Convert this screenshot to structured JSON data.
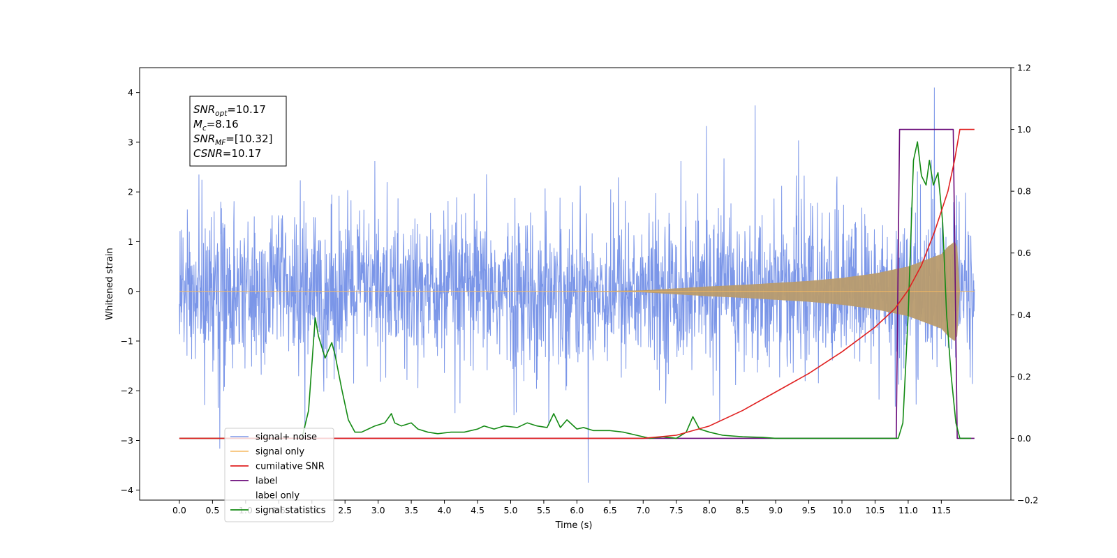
{
  "chart_data": {
    "type": "line",
    "title": "",
    "xlabel": "Time (s)",
    "ylabel": "Whitened strain",
    "xlim": [
      -0.6,
      12.55
    ],
    "ylim": [
      -4.2,
      4.5
    ],
    "y2lim": [
      -0.2,
      1.2
    ],
    "x_ticks": [
      "0.0",
      "0.5",
      "1.0",
      "1.5",
      "2.0",
      "2.5",
      "3.0",
      "3.5",
      "4.0",
      "4.5",
      "5.0",
      "5.5",
      "6.0",
      "6.5",
      "7.0",
      "7.5",
      "8.0",
      "8.5",
      "9.0",
      "9.5",
      "10.0",
      "10.5",
      "11.0",
      "11.5"
    ],
    "y_ticks": [
      "4",
      "3",
      "2",
      "1",
      "0",
      "−1",
      "−2",
      "−3",
      "−4"
    ],
    "y2_ticks": [
      "1.2",
      "1.0",
      "0.8",
      "0.6",
      "0.4",
      "0.2",
      "0.0",
      "−0.2"
    ],
    "grid": false,
    "legend_position": "lower-left",
    "annotation": {
      "lines": [
        {
          "name": "SNR",
          "sub": "opt",
          "value": "=10.17"
        },
        {
          "name": "M",
          "sub": "c",
          "value": "=8.16"
        },
        {
          "name": "SNR",
          "sub": "MF",
          "value": "=[10.32]"
        },
        {
          "name": "CSNR",
          "sub": "",
          "value": "=10.17"
        }
      ]
    },
    "series": [
      {
        "name": "signal+ noise",
        "color": "#7b96e8",
        "axis": "left",
        "x_range": [
          0.0,
          12.0
        ],
        "description_values": {
          "std": 0.75,
          "spike_max": 4.1,
          "spike_min": -3.85
        }
      },
      {
        "name": "signal only",
        "color": "#f5b961",
        "axis": "left",
        "envelope_x": [
          0.0,
          6.0,
          7.0,
          7.5,
          8.0,
          8.5,
          9.0,
          9.5,
          10.0,
          10.5,
          11.0,
          11.5,
          11.6,
          11.7,
          11.74,
          11.78,
          12.0
        ],
        "envelope_amp": [
          0.0,
          0.0,
          0.02,
          0.06,
          0.1,
          0.13,
          0.17,
          0.21,
          0.27,
          0.36,
          0.5,
          0.75,
          0.9,
          1.0,
          0.9,
          0.0,
          0.0
        ]
      },
      {
        "name": "cumilative SNR",
        "color": "#e02020",
        "axis": "right",
        "x": [
          0.0,
          7.0,
          7.5,
          8.0,
          8.5,
          9.0,
          9.5,
          10.0,
          10.5,
          10.8,
          11.0,
          11.2,
          11.4,
          11.6,
          11.7,
          11.78,
          12.0
        ],
        "y": [
          0.0,
          0.0,
          0.01,
          0.04,
          0.09,
          0.15,
          0.21,
          0.28,
          0.36,
          0.42,
          0.48,
          0.56,
          0.67,
          0.8,
          0.9,
          1.0,
          1.0
        ]
      },
      {
        "name": "label",
        "color": "#6a0a7a",
        "axis": "right",
        "x": [
          0.0,
          10.82,
          10.87,
          11.68,
          11.74,
          12.0
        ],
        "y": [
          0.0,
          0.0,
          1.0,
          1.0,
          0.0,
          0.0
        ]
      },
      {
        "name": "label only",
        "color": "#444444",
        "axis": "right",
        "hidden": true
      },
      {
        "name": "signal statistics",
        "color": "#138a13",
        "axis": "right",
        "x": [
          0.0,
          1.85,
          1.95,
          2.05,
          2.1,
          2.2,
          2.3,
          2.35,
          2.45,
          2.55,
          2.65,
          2.75,
          2.85,
          2.95,
          3.1,
          3.2,
          3.25,
          3.35,
          3.5,
          3.6,
          3.75,
          3.9,
          4.1,
          4.3,
          4.5,
          4.6,
          4.75,
          4.9,
          5.1,
          5.25,
          5.4,
          5.55,
          5.65,
          5.75,
          5.85,
          6.0,
          6.1,
          6.25,
          6.5,
          6.7,
          6.9,
          7.1,
          7.3,
          7.5,
          7.65,
          7.75,
          7.85,
          8.0,
          8.2,
          8.5,
          8.8,
          9.0,
          10.7,
          10.85,
          10.92,
          11.0,
          11.08,
          11.14,
          11.2,
          11.27,
          11.32,
          11.38,
          11.45,
          11.52,
          11.58,
          11.65,
          11.72,
          11.78,
          11.95
        ],
        "y": [
          0.0,
          0.0,
          0.09,
          0.39,
          0.33,
          0.26,
          0.31,
          0.27,
          0.16,
          0.06,
          0.02,
          0.02,
          0.03,
          0.04,
          0.05,
          0.08,
          0.05,
          0.04,
          0.05,
          0.03,
          0.02,
          0.015,
          0.02,
          0.02,
          0.03,
          0.04,
          0.03,
          0.04,
          0.035,
          0.05,
          0.04,
          0.035,
          0.08,
          0.035,
          0.06,
          0.03,
          0.035,
          0.025,
          0.025,
          0.02,
          0.01,
          0.0,
          0.005,
          0.0,
          0.02,
          0.07,
          0.03,
          0.02,
          0.01,
          0.005,
          0.003,
          0.0,
          0.0,
          0.0,
          0.05,
          0.4,
          0.9,
          0.96,
          0.85,
          0.82,
          0.9,
          0.82,
          0.86,
          0.7,
          0.4,
          0.2,
          0.05,
          0.0,
          0.0
        ]
      }
    ]
  }
}
